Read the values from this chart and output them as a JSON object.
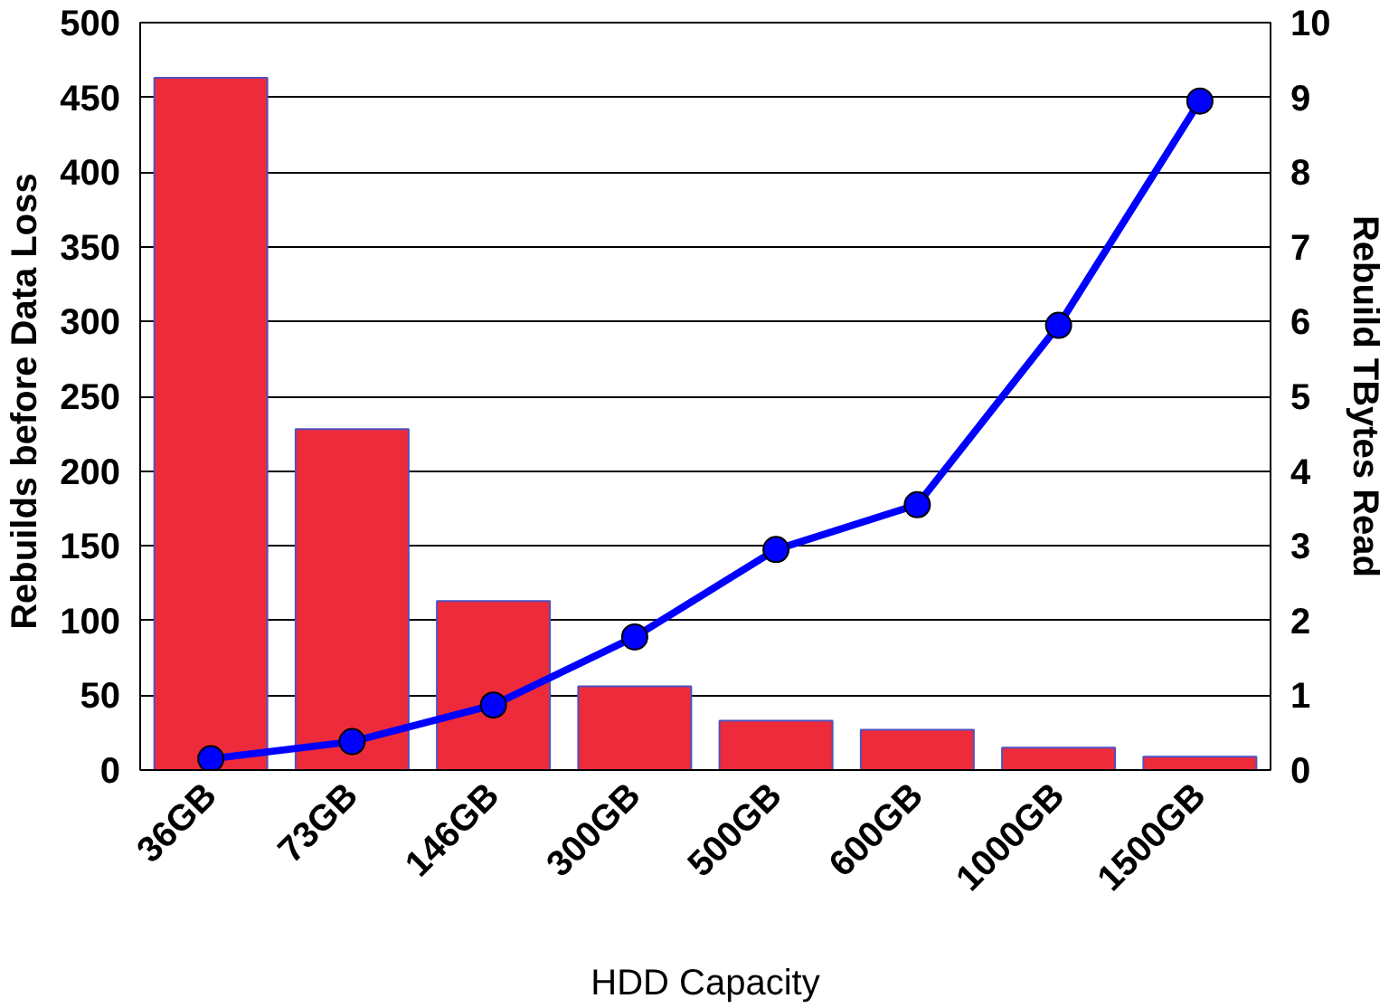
{
  "chart_data": {
    "type": "bar",
    "xlabel": "HDD Capacity",
    "ylabel": "Rebuilds before Data  Loss",
    "y2label": "Rebuild TBytes Read",
    "categories": [
      "36GB",
      "73GB",
      "146GB",
      "300GB",
      "500GB",
      "600GB",
      "1000GB",
      "1500GB"
    ],
    "series": [
      {
        "color": "#ee2b3b",
        "values": [
          463,
          228,
          113,
          56,
          33,
          27,
          15,
          9
        ]
      },
      {
        "type": "line",
        "axis": "y2",
        "color": "#0000ff",
        "marker": "circle",
        "values": [
          0.15,
          0.38,
          0.87,
          1.78,
          2.95,
          3.55,
          5.95,
          8.95
        ]
      }
    ],
    "ylim": [
      0,
      500
    ],
    "yticks": [
      0,
      50,
      100,
      150,
      200,
      250,
      300,
      350,
      400,
      450,
      500
    ],
    "y2lim": [
      0,
      10
    ],
    "y2ticks": [
      0,
      1,
      2,
      3,
      4,
      5,
      6,
      7,
      8,
      9,
      10
    ],
    "grid": "y"
  }
}
